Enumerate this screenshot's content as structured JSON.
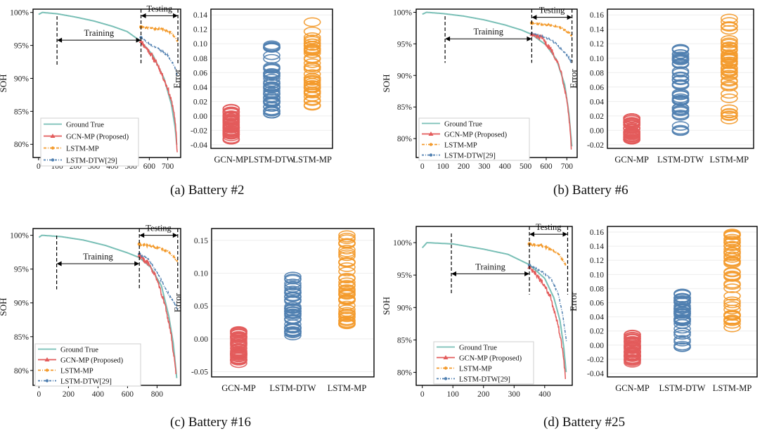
{
  "colors": {
    "ground_true": "#79bfb6",
    "gcn_mp": "#e35b5b",
    "lstm_mp": "#f39a2b",
    "lstm_dtw": "#4f7fb0",
    "axis": "#000000",
    "grid": "#eeeeee"
  },
  "legend_labels": [
    "Ground True",
    "GCN-MP (Proposed)",
    "LSTM-MP",
    "LSTM-DTW[29]"
  ],
  "chart_data": [
    {
      "id": "b2",
      "type": "line",
      "caption": "(a) Battery #2",
      "ylabel": "SOH",
      "xlim": [
        -30,
        770
      ],
      "ylim": [
        0.78,
        1.005
      ],
      "xticks": [
        0,
        100,
        200,
        300,
        400,
        500,
        600,
        700
      ],
      "yticks": [
        0.8,
        0.85,
        0.9,
        0.95,
        1.0
      ],
      "ytick_labels": [
        "80%",
        "85%",
        "90%",
        "95%",
        "100%"
      ],
      "train_start": 100,
      "split": 555,
      "test_end": 755,
      "training_label": "Training",
      "testing_label": "Testing",
      "training_arrow_y": 0.958,
      "testing_arrow_y": 0.995,
      "end": 750,
      "gt_knots": [
        [
          0,
          0.997
        ],
        [
          20,
          1.0
        ],
        [
          100,
          0.998
        ],
        [
          200,
          0.993
        ],
        [
          300,
          0.987
        ],
        [
          400,
          0.979
        ],
        [
          480,
          0.971
        ],
        [
          555,
          0.956
        ],
        [
          620,
          0.935
        ],
        [
          680,
          0.9
        ],
        [
          720,
          0.86
        ],
        [
          740,
          0.825
        ],
        [
          750,
          0.795
        ]
      ],
      "gcn_knots": [
        [
          555,
          0.956
        ],
        [
          600,
          0.94
        ],
        [
          650,
          0.918
        ],
        [
          700,
          0.885
        ],
        [
          730,
          0.855
        ],
        [
          745,
          0.82
        ],
        [
          752,
          0.782
        ]
      ],
      "lstm_mp_knots": [
        [
          555,
          0.978
        ],
        [
          620,
          0.976
        ],
        [
          680,
          0.974
        ],
        [
          720,
          0.969
        ],
        [
          745,
          0.96
        ],
        [
          755,
          0.955
        ]
      ],
      "lstm_dtw_knots": [
        [
          555,
          0.962
        ],
        [
          600,
          0.952
        ],
        [
          650,
          0.945
        ],
        [
          700,
          0.935
        ],
        [
          730,
          0.922
        ],
        [
          755,
          0.903
        ]
      ],
      "error_chart": {
        "type": "scatter",
        "ylabel": "Error",
        "categories": [
          "GCN-MP",
          "LSTM-DTW",
          "LSTM-MP"
        ],
        "ylim": [
          -0.045,
          0.148
        ],
        "yticks": [
          -0.04,
          -0.02,
          0.0,
          0.02,
          0.04,
          0.06,
          0.08,
          0.1,
          0.12,
          0.14
        ],
        "ytick_labels": [
          "-0.04",
          "-0.02",
          "0.00",
          "0.02",
          "0.04",
          "0.06",
          "0.08",
          "0.10",
          "0.12",
          "0.14"
        ],
        "ranges": [
          [
            -0.033,
            0.01
          ],
          [
            0.003,
            0.098
          ],
          [
            0.014,
            0.13
          ]
        ]
      }
    },
    {
      "id": "b6",
      "type": "line",
      "caption": "(b) Battery #6",
      "ylabel": "SOH",
      "xlim": [
        -30,
        750
      ],
      "ylim": [
        0.77,
        1.005
      ],
      "xticks": [
        0,
        100,
        200,
        300,
        400,
        500,
        600,
        700
      ],
      "yticks": [
        0.8,
        0.85,
        0.9,
        0.95,
        1.0
      ],
      "ytick_labels": [
        "80%",
        "85%",
        "90%",
        "95%",
        "100%"
      ],
      "train_start": 110,
      "split": 530,
      "test_end": 725,
      "training_label": "Training",
      "testing_label": "Testing",
      "training_arrow_y": 0.958,
      "testing_arrow_y": 0.992,
      "end": 725,
      "gt_knots": [
        [
          0,
          0.997
        ],
        [
          20,
          1.0
        ],
        [
          100,
          0.998
        ],
        [
          200,
          0.994
        ],
        [
          300,
          0.988
        ],
        [
          400,
          0.98
        ],
        [
          480,
          0.972
        ],
        [
          530,
          0.965
        ],
        [
          600,
          0.948
        ],
        [
          650,
          0.925
        ],
        [
          690,
          0.885
        ],
        [
          710,
          0.84
        ],
        [
          725,
          0.785
        ]
      ],
      "gcn_knots": [
        [
          530,
          0.965
        ],
        [
          580,
          0.958
        ],
        [
          630,
          0.938
        ],
        [
          670,
          0.91
        ],
        [
          700,
          0.862
        ],
        [
          715,
          0.82
        ],
        [
          722,
          0.78
        ]
      ],
      "lstm_mp_knots": [
        [
          530,
          0.983
        ],
        [
          600,
          0.98
        ],
        [
          650,
          0.978
        ],
        [
          690,
          0.972
        ],
        [
          715,
          0.966
        ],
        [
          725,
          0.962
        ]
      ],
      "lstm_dtw_knots": [
        [
          530,
          0.966
        ],
        [
          580,
          0.962
        ],
        [
          630,
          0.955
        ],
        [
          680,
          0.94
        ],
        [
          710,
          0.928
        ],
        [
          725,
          0.92
        ]
      ],
      "error_chart": {
        "type": "scatter",
        "ylabel": "Error",
        "categories": [
          "GCN-MP",
          "LSTM-DTW",
          "LSTM-MP"
        ],
        "ylim": [
          -0.025,
          0.168
        ],
        "yticks": [
          -0.02,
          0.0,
          0.02,
          0.04,
          0.06,
          0.08,
          0.1,
          0.12,
          0.14,
          0.16
        ],
        "ytick_labels": [
          "-0.02",
          "0.00",
          "0.02",
          "0.04",
          "0.06",
          "0.08",
          "0.10",
          "0.12",
          "0.14",
          "0.16"
        ],
        "ranges": [
          [
            -0.013,
            0.017
          ],
          [
            -0.001,
            0.113
          ],
          [
            0.015,
            0.155
          ]
        ]
      }
    },
    {
      "id": "b16",
      "type": "line",
      "caption": "(c) Battery #16",
      "ylabel": "SOH",
      "xlim": [
        -40,
        960
      ],
      "ylim": [
        0.778,
        1.01
      ],
      "xticks": [
        0,
        200,
        400,
        600,
        800
      ],
      "yticks": [
        0.8,
        0.85,
        0.9,
        0.95,
        1.0
      ],
      "ytick_labels": [
        "80%",
        "85%",
        "90%",
        "95%",
        "100%"
      ],
      "train_start": 120,
      "split": 680,
      "test_end": 940,
      "training_label": "Training",
      "testing_label": "Testing",
      "training_arrow_y": 0.958,
      "testing_arrow_y": 1.0,
      "end": 935,
      "gt_knots": [
        [
          0,
          0.997
        ],
        [
          20,
          1.0
        ],
        [
          150,
          0.998
        ],
        [
          300,
          0.993
        ],
        [
          450,
          0.985
        ],
        [
          600,
          0.974
        ],
        [
          680,
          0.967
        ],
        [
          760,
          0.952
        ],
        [
          830,
          0.925
        ],
        [
          880,
          0.88
        ],
        [
          910,
          0.84
        ],
        [
          935,
          0.785
        ]
      ],
      "gcn_knots": [
        [
          680,
          0.97
        ],
        [
          740,
          0.958
        ],
        [
          800,
          0.935
        ],
        [
          850,
          0.9
        ],
        [
          890,
          0.86
        ],
        [
          915,
          0.82
        ],
        [
          930,
          0.79
        ]
      ],
      "lstm_mp_knots": [
        [
          680,
          0.987
        ],
        [
          760,
          0.984
        ],
        [
          830,
          0.98
        ],
        [
          880,
          0.975
        ],
        [
          915,
          0.968
        ],
        [
          940,
          0.96
        ]
      ],
      "lstm_dtw_knots": [
        [
          680,
          0.972
        ],
        [
          740,
          0.965
        ],
        [
          800,
          0.945
        ],
        [
          860,
          0.92
        ],
        [
          910,
          0.902
        ],
        [
          940,
          0.89
        ]
      ],
      "error_chart": {
        "type": "scatter",
        "ylabel": "Error",
        "categories": [
          "GCN-MP",
          "LSTM-DTW",
          "LSTM-MP"
        ],
        "ylim": [
          -0.058,
          0.168
        ],
        "yticks": [
          -0.05,
          0.0,
          0.05,
          0.1,
          0.15
        ],
        "ytick_labels": [
          "-0.05",
          "0.00",
          "0.05",
          "0.10",
          "0.15"
        ],
        "ranges": [
          [
            -0.037,
            0.012
          ],
          [
            0.005,
            0.095
          ],
          [
            0.022,
            0.158
          ]
        ]
      }
    },
    {
      "id": "b25",
      "type": "line",
      "caption": "(d) Battery #25",
      "ylabel": "SOH",
      "xlim": [
        -20,
        490
      ],
      "ylim": [
        0.78,
        1.025
      ],
      "xticks": [
        0,
        100,
        200,
        300,
        400
      ],
      "yticks": [
        0.8,
        0.85,
        0.9,
        0.95,
        1.0
      ],
      "ytick_labels": [
        "80%",
        "85%",
        "90%",
        "95%",
        "100%"
      ],
      "train_start": 95,
      "split": 350,
      "test_end": 475,
      "training_label": "Training",
      "testing_label": "Testing",
      "training_arrow_y": 0.952,
      "testing_arrow_y": 1.013,
      "end": 470,
      "gt_knots": [
        [
          0,
          0.992
        ],
        [
          15,
          1.0
        ],
        [
          100,
          0.998
        ],
        [
          200,
          0.99
        ],
        [
          280,
          0.982
        ],
        [
          350,
          0.966
        ],
        [
          400,
          0.945
        ],
        [
          430,
          0.915
        ],
        [
          450,
          0.88
        ],
        [
          462,
          0.84
        ],
        [
          470,
          0.8
        ]
      ],
      "gcn_knots": [
        [
          350,
          0.962
        ],
        [
          390,
          0.94
        ],
        [
          420,
          0.915
        ],
        [
          445,
          0.87
        ],
        [
          460,
          0.83
        ],
        [
          468,
          0.79
        ]
      ],
      "lstm_mp_knots": [
        [
          350,
          0.998
        ],
        [
          390,
          0.995
        ],
        [
          420,
          0.99
        ],
        [
          445,
          0.983
        ],
        [
          470,
          0.965
        ]
      ],
      "lstm_dtw_knots": [
        [
          350,
          0.965
        ],
        [
          390,
          0.955
        ],
        [
          420,
          0.945
        ],
        [
          445,
          0.92
        ],
        [
          460,
          0.885
        ],
        [
          472,
          0.845
        ]
      ],
      "error_chart": {
        "type": "scatter",
        "ylabel": "Error",
        "categories": [
          "GCN-MP",
          "LSTM-DTW",
          "LSTM-MP"
        ],
        "ylim": [
          -0.045,
          0.168
        ],
        "yticks": [
          -0.04,
          -0.02,
          0.0,
          0.02,
          0.04,
          0.06,
          0.08,
          0.1,
          0.12,
          0.14,
          0.16
        ],
        "ytick_labels": [
          "-0.04",
          "-0.02",
          "0.00",
          "0.02",
          "0.04",
          "0.06",
          "0.08",
          "0.10",
          "0.12",
          "0.14",
          "0.16"
        ],
        "ranges": [
          [
            -0.025,
            0.015
          ],
          [
            -0.003,
            0.073
          ],
          [
            0.025,
            0.158
          ]
        ]
      }
    }
  ]
}
